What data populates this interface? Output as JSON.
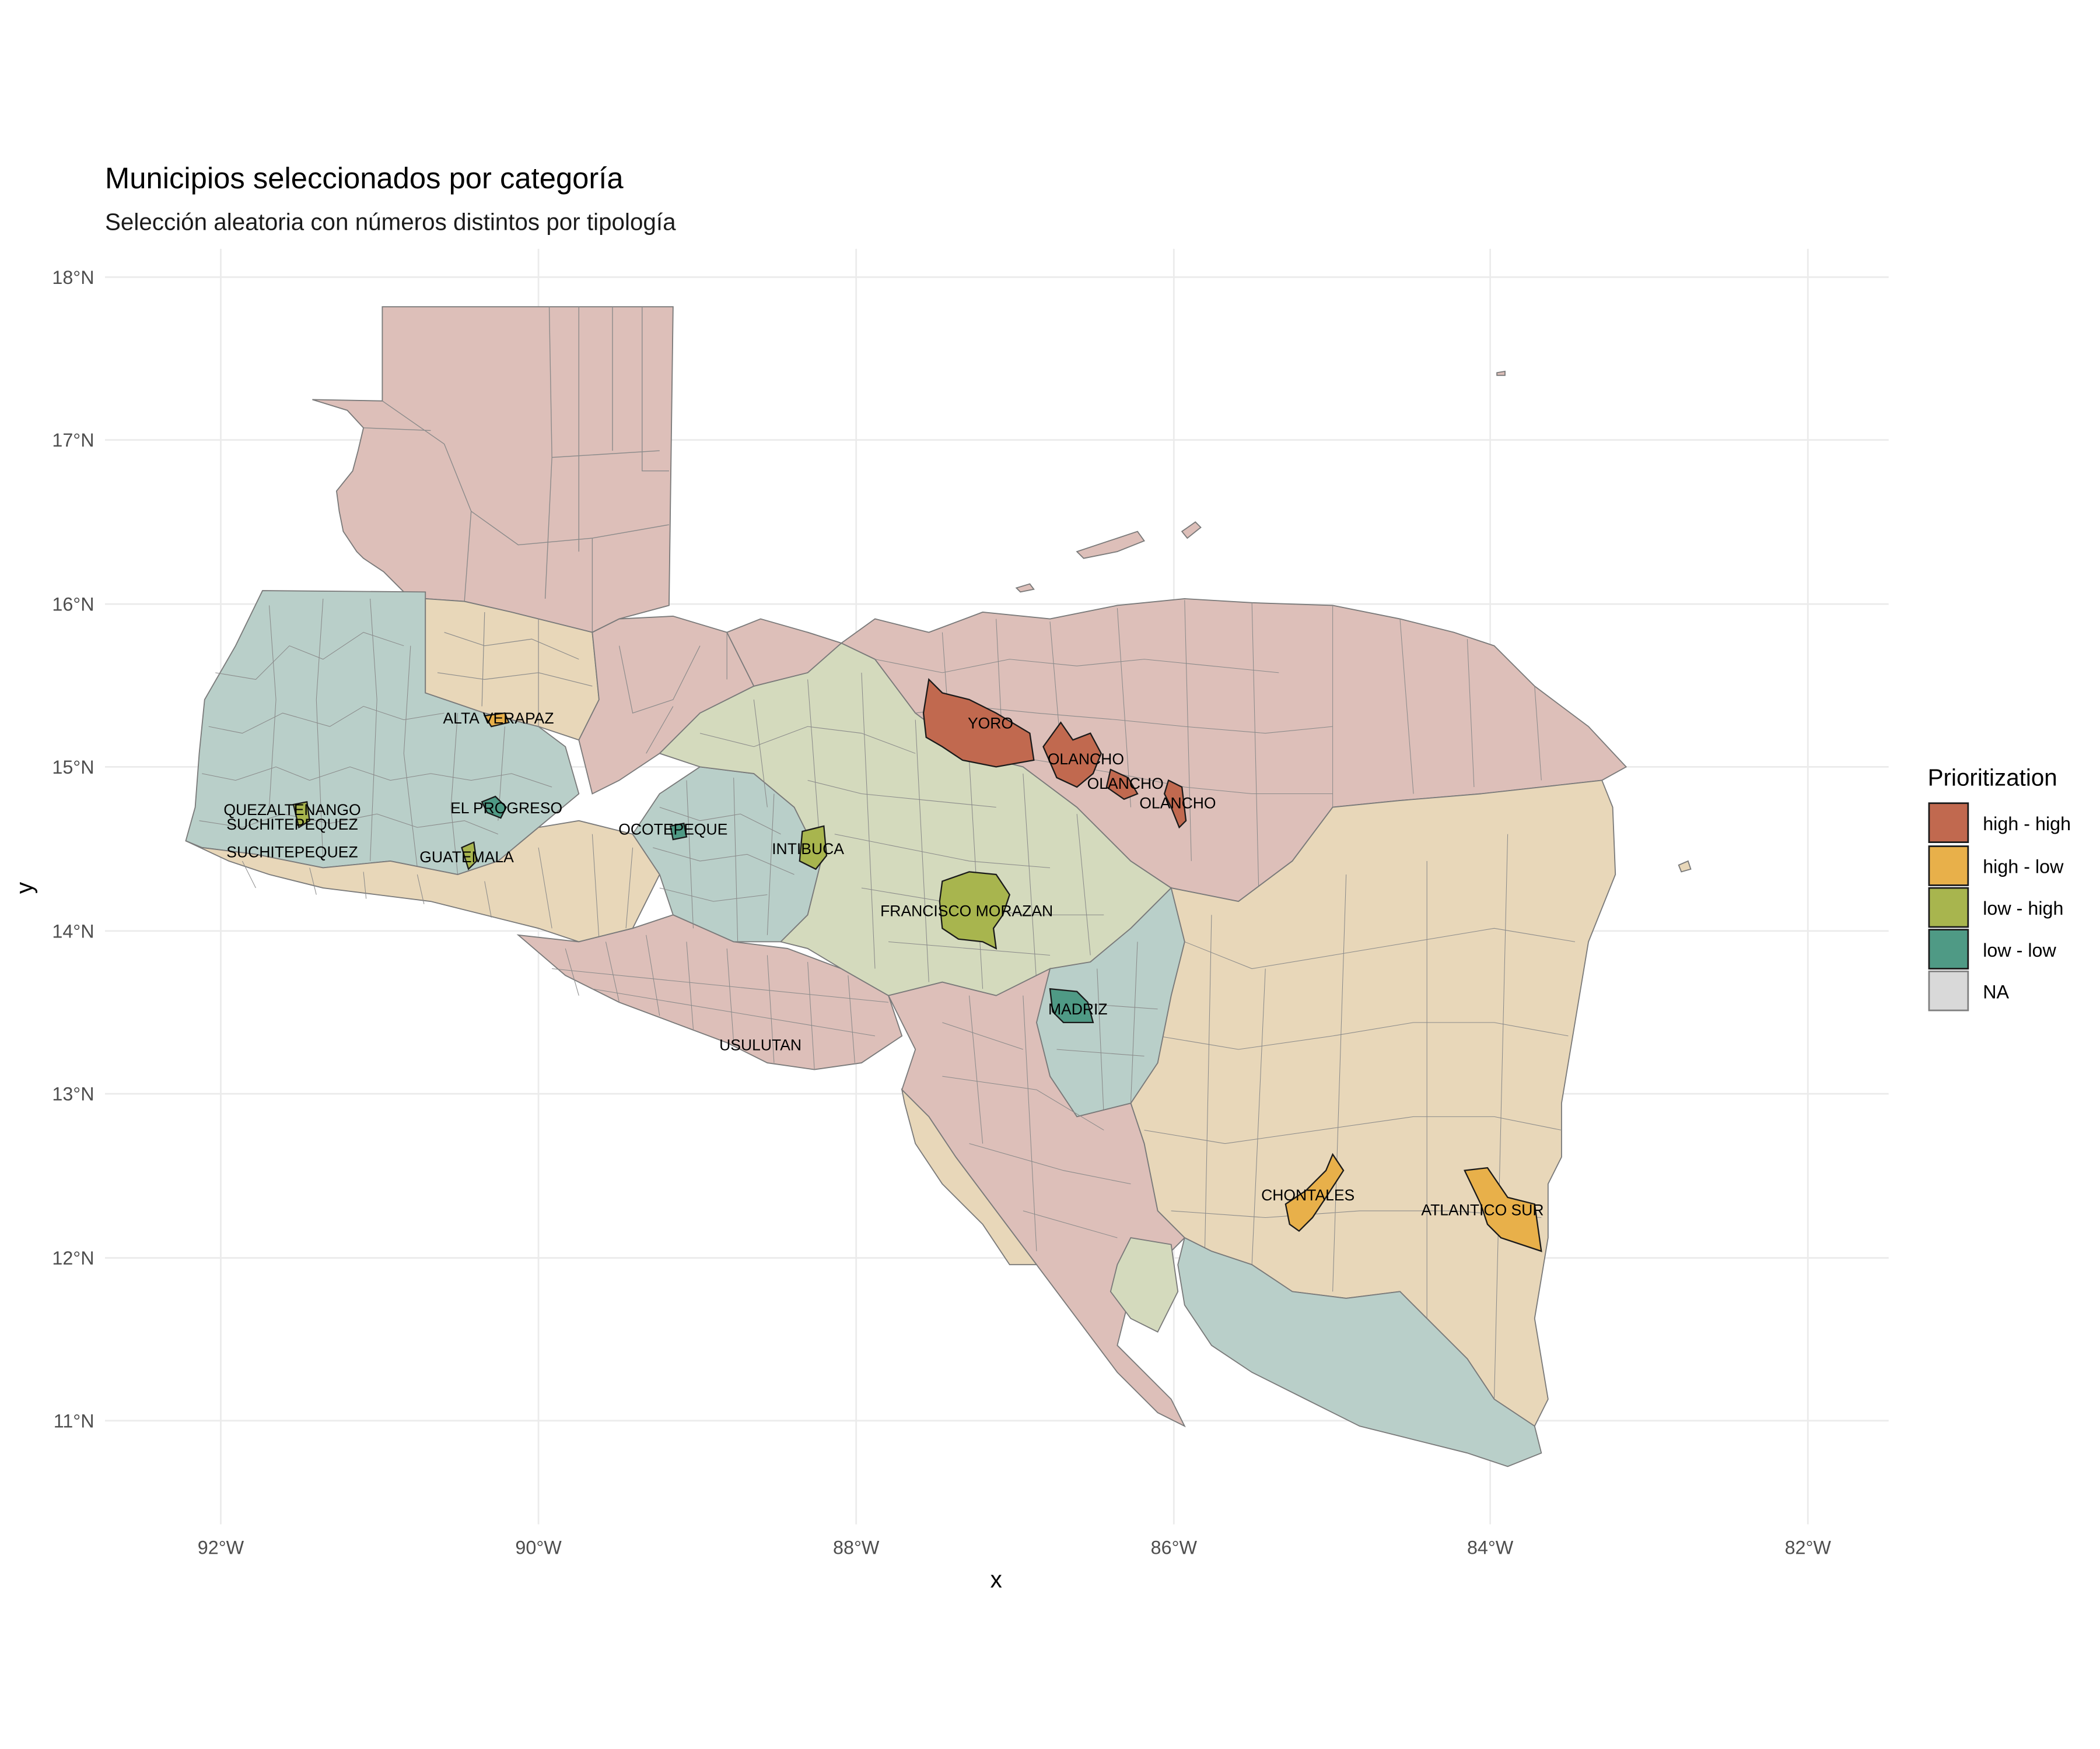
{
  "chart": {
    "title": "Municipios seleccionados por categoría",
    "subtitle": "Selección aleatoria con números distintos por tipología",
    "xlabel": "x",
    "ylabel": "y"
  },
  "axes": {
    "x_ticks": [
      "92°W",
      "90°W",
      "88°W",
      "86°W",
      "84°W",
      "82°W"
    ],
    "y_ticks": [
      "18°N",
      "17°N",
      "16°N",
      "15°N",
      "14°N",
      "13°N",
      "12°N",
      "11°N"
    ]
  },
  "legend": {
    "title": "Prioritization",
    "entries": [
      {
        "label": "high - high",
        "color": "#c1694f"
      },
      {
        "label": "high - low",
        "color": "#e8b04a"
      },
      {
        "label": "low - high",
        "color": "#a8b54e"
      },
      {
        "label": "low - low",
        "color": "#4f9a85"
      },
      {
        "label": "NA",
        "color": "#d9d9d9"
      }
    ]
  },
  "background_colors": {
    "high_high_light": "#ddbfb9",
    "high_low_light": "#e8d7b9",
    "low_high_light": "#d4dabd",
    "low_low_light": "#b9cfc9"
  },
  "labels": [
    {
      "text": "ALTA VERAPAZ",
      "lon": -90.25,
      "lat": 15.3
    },
    {
      "text": "YORO",
      "lon": -87.15,
      "lat": 15.27
    },
    {
      "text": "OLANCHO",
      "lon": -86.55,
      "lat": 15.05
    },
    {
      "text": "OLANCHO",
      "lon": -86.3,
      "lat": 14.9
    },
    {
      "text": "OLANCHO",
      "lon": -85.97,
      "lat": 14.78
    },
    {
      "text": "QUEZALTENANGO",
      "lon": -91.55,
      "lat": 14.74
    },
    {
      "text": "SUCHITEPEQUEZ",
      "lon": -91.55,
      "lat": 14.65
    },
    {
      "text": "SUCHITEPEQUEZ",
      "lon": -91.55,
      "lat": 14.48
    },
    {
      "text": "EL PROGRESO",
      "lon": -90.2,
      "lat": 14.75
    },
    {
      "text": "GUATEMALA",
      "lon": -90.45,
      "lat": 14.45
    },
    {
      "text": "OCOTEPEQUE",
      "lon": -89.15,
      "lat": 14.62
    },
    {
      "text": "INTIBUCA",
      "lon": -88.3,
      "lat": 14.5
    },
    {
      "text": "FRANCISCO MORAZAN",
      "lon": -87.3,
      "lat": 14.12
    },
    {
      "text": "MADRIZ",
      "lon": -86.6,
      "lat": 13.52
    },
    {
      "text": "USULUTAN",
      "lon": -88.6,
      "lat": 13.3
    },
    {
      "text": "CHONTALES",
      "lon": -85.15,
      "lat": 12.38
    },
    {
      "text": "ATLANTICO SUR",
      "lon": -84.05,
      "lat": 12.29
    }
  ]
}
